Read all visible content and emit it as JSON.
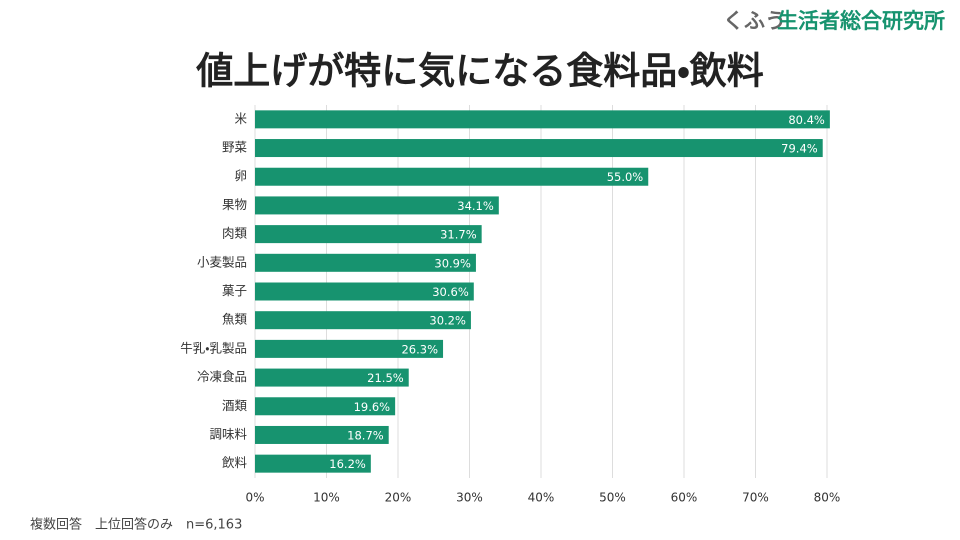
{
  "header": {
    "brand_kana": "くふう",
    "brand_name": "生活者総合研究所"
  },
  "chart_data": {
    "type": "bar",
    "orientation": "horizontal",
    "title": "値上げが特に気になる食料品・飲料",
    "categories": [
      "米",
      "野菜",
      "卵",
      "果物",
      "肉類",
      "小麦製品",
      "菓子",
      "魚類",
      "牛乳・乳製品",
      "冷凍食品",
      "酒類",
      "調味料",
      "飲料"
    ],
    "values": [
      80.4,
      79.4,
      55.0,
      34.1,
      31.7,
      30.9,
      30.6,
      30.2,
      26.3,
      21.5,
      19.6,
      18.7,
      16.2
    ],
    "value_labels": [
      "80.4%",
      "79.4%",
      "55.0%",
      "34.1%",
      "31.7%",
      "30.9%",
      "30.6%",
      "30.2%",
      "26.3%",
      "21.5%",
      "19.6%",
      "18.7%",
      "16.2%"
    ],
    "color": "#17936f",
    "xlim": [
      0,
      80
    ],
    "xticks": [
      {
        "value": 0,
        "label": "0%"
      },
      {
        "value": 10,
        "label": "10%"
      },
      {
        "value": 20,
        "label": "20%"
      },
      {
        "value": 30,
        "label": "30%"
      },
      {
        "value": 40,
        "label": "40%"
      },
      {
        "value": 50,
        "label": "50%"
      },
      {
        "value": 60,
        "label": "60%"
      },
      {
        "value": 70,
        "label": "70%"
      },
      {
        "value": 80,
        "label": "80%"
      }
    ],
    "grid": true
  },
  "footer": {
    "note": "複数回答　上位回答のみ　n=6,163"
  }
}
